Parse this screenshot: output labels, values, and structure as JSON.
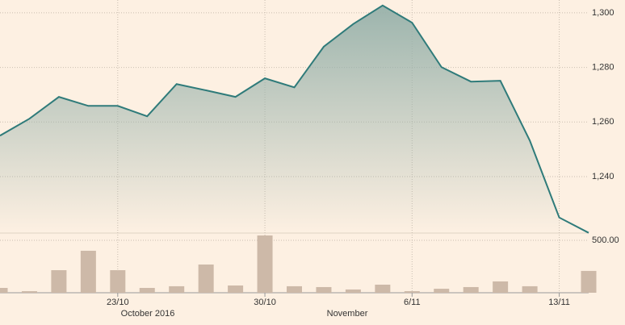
{
  "chart_data": [
    {
      "type": "area",
      "color": "#2f7b7a",
      "fill": "#97b1aa",
      "values": [
        1255.0,
        1261.2,
        1269.2,
        1265.9,
        1265.9,
        1262.1,
        1273.9,
        1271.6,
        1269.2,
        1276.0,
        1272.7,
        1287.6,
        1295.9,
        1302.7,
        1296.4,
        1280.1,
        1274.8,
        1275.1,
        1253.2,
        1225.0,
        1219.4
      ],
      "ylim": [
        1219.6,
        1304.7
      ],
      "yticks": [
        {
          "value": 1240,
          "label": "1,240"
        },
        {
          "value": 1260,
          "label": "1,260"
        },
        {
          "value": 1280,
          "label": "1,280"
        },
        {
          "value": 1300,
          "label": "1,300"
        }
      ],
      "grid": true
    },
    {
      "type": "bar",
      "color": "#cdb9a8",
      "categories": [
        null,
        null,
        null,
        null,
        "23/10",
        null,
        null,
        null,
        null,
        "30/10",
        null,
        null,
        null,
        null,
        "6/11",
        null,
        null,
        null,
        null,
        "13/11",
        null
      ],
      "period_labels": [
        "October 2016",
        "November"
      ],
      "values": [
        46,
        15,
        215,
        400,
        215,
        46,
        62,
        269,
        69,
        546,
        62,
        54,
        31,
        77,
        15,
        38,
        54,
        108,
        62,
        null,
        208
      ],
      "ylim": [
        0,
        561
      ],
      "yticks": [
        {
          "value": 500,
          "label": "500.00"
        }
      ],
      "grid": true
    }
  ]
}
